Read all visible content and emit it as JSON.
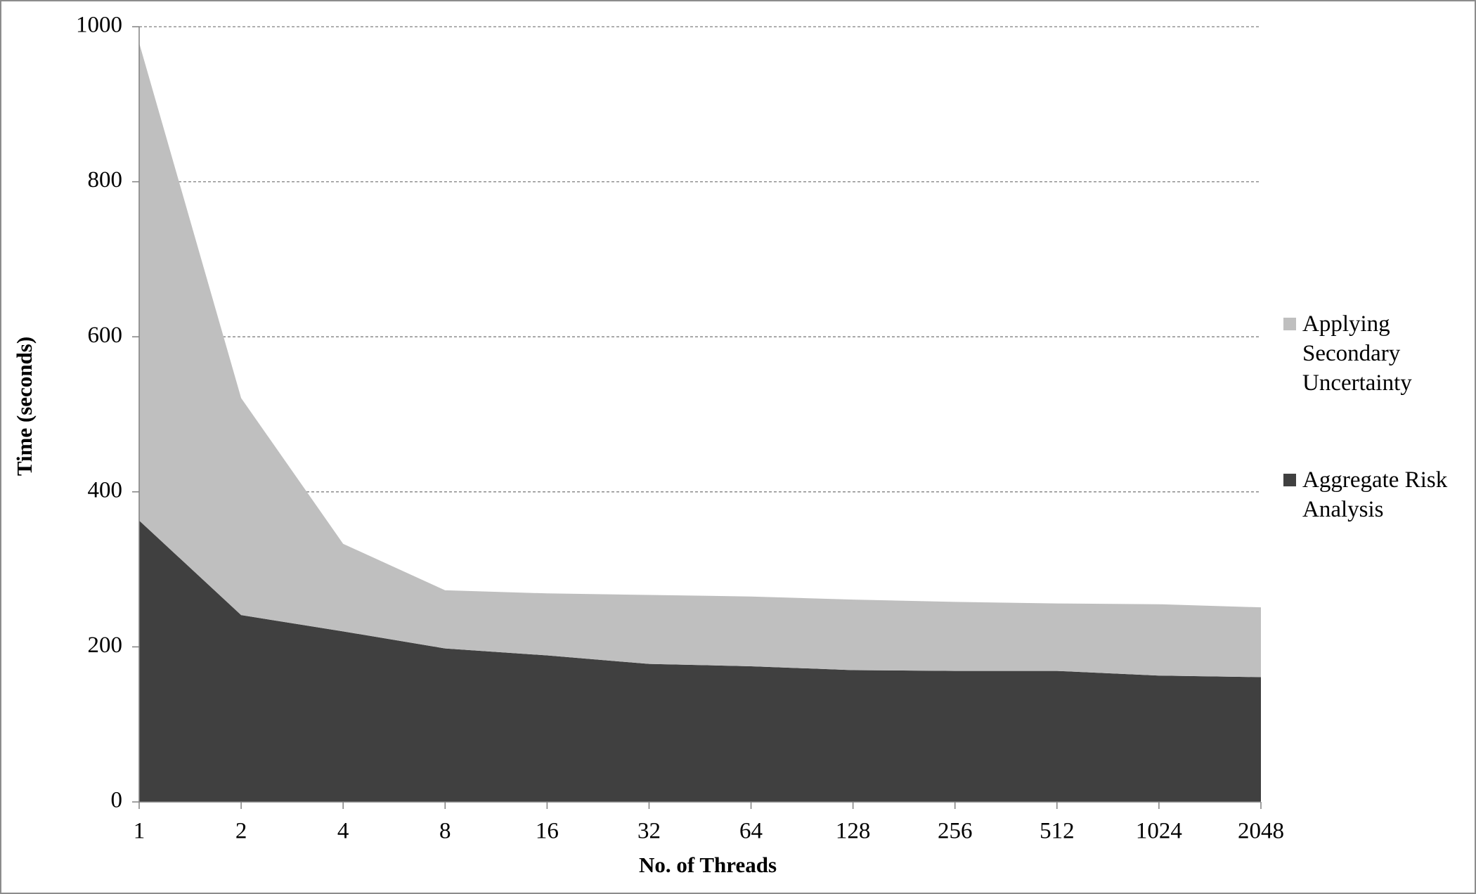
{
  "chart_data": {
    "type": "stacked_area",
    "x_label": "No. of Threads",
    "y_label": "Time (seconds)",
    "categories": [
      "1",
      "2",
      "4",
      "8",
      "16",
      "32",
      "64",
      "128",
      "256",
      "512",
      "1024",
      "2048"
    ],
    "series": [
      {
        "name": "Aggregate Risk Analysis",
        "color": "#404040",
        "values": [
          363,
          241,
          220,
          198,
          189,
          178,
          175,
          170,
          169,
          169,
          163,
          161
        ]
      },
      {
        "name": "Applying Secondary Uncertainty",
        "color": "#bfbfbf",
        "values": [
          616,
          280,
          113,
          75,
          80,
          89,
          90,
          91,
          89,
          87,
          92,
          90
        ]
      }
    ],
    "ylim": [
      0,
      1000
    ],
    "yticks": [
      0,
      200,
      400,
      600,
      800,
      1000
    ],
    "grid": true,
    "legend": "right"
  }
}
